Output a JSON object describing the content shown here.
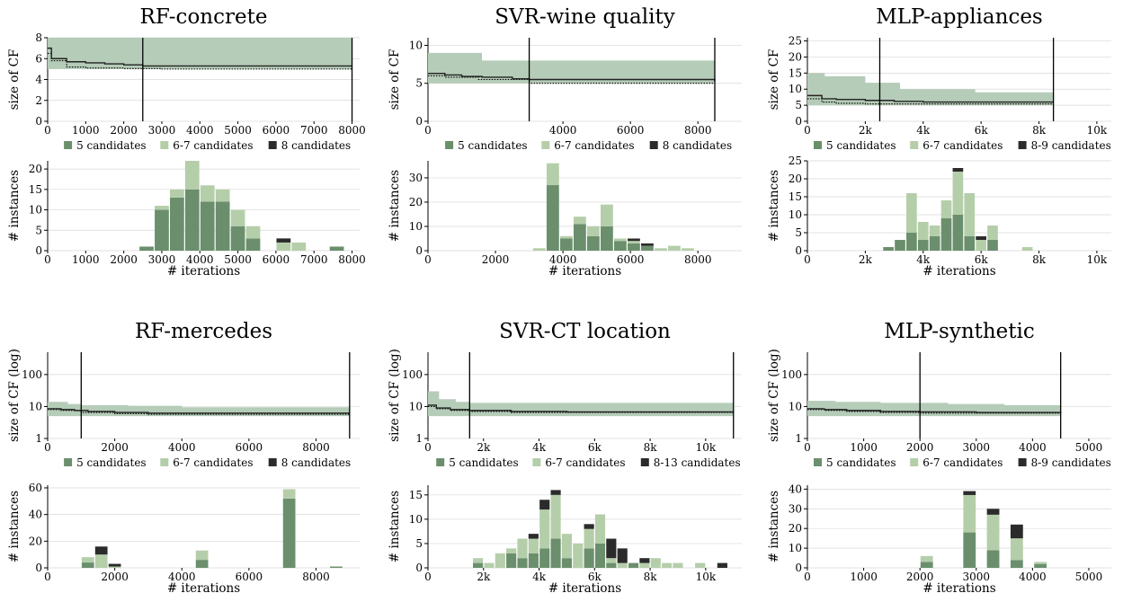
{
  "colors": {
    "c5": "#6b8f6d",
    "c67": "#b5ceaa",
    "c8": "#2b2b2b",
    "band": "#b5ccb8"
  },
  "chart_data": [
    {
      "type": "area",
      "title": "RF-concrete",
      "xlabel": "",
      "ylabel": "size of CF",
      "yscale": "linear",
      "xlim": [
        0,
        8200
      ],
      "ylim": [
        0,
        8
      ],
      "xticks": [
        0,
        1000,
        2000,
        3000,
        4000,
        5000,
        6000,
        7000,
        8000
      ],
      "xticklabels": [
        "0",
        "1000",
        "2000",
        "3000",
        "4000",
        "5000",
        "6000",
        "7000",
        "8000"
      ],
      "yticks": [
        0,
        2,
        4,
        6,
        8
      ],
      "yticklabels": [
        "0",
        "2",
        "4",
        "6",
        "8"
      ],
      "vlines": [
        2500,
        8000
      ],
      "band": {
        "x": [
          0,
          100,
          8000
        ],
        "low": [
          5,
          5,
          5
        ],
        "high": [
          8,
          8,
          8
        ]
      },
      "median": {
        "x": [
          0,
          100,
          500,
          1000,
          1500,
          2000,
          2500,
          8000
        ],
        "y": [
          7,
          6,
          5.7,
          5.6,
          5.5,
          5.4,
          5.3,
          5.3
        ]
      },
      "mean": {
        "x": [
          0,
          100,
          500,
          1000,
          2000,
          3000,
          8000
        ],
        "y": [
          6.5,
          5.8,
          5.2,
          5.1,
          5.05,
          5.0,
          5.0
        ]
      },
      "legend": [
        "5 candidates",
        "6-7 candidates",
        "8 candidates"
      ]
    },
    {
      "type": "bar",
      "title": "",
      "xlabel": "# iterations",
      "ylabel": "# instances",
      "xlim": [
        0,
        8200
      ],
      "ylim": [
        0,
        22
      ],
      "xticks": [
        0,
        1000,
        2000,
        3000,
        4000,
        5000,
        6000,
        7000,
        8000
      ],
      "xticklabels": [
        "0",
        "1000",
        "2000",
        "3000",
        "4000",
        "5000",
        "6000",
        "7000",
        "8000"
      ],
      "yticks": [
        0,
        5,
        10,
        15,
        20
      ],
      "yticklabels": [
        "0",
        "5",
        "10",
        "15",
        "20"
      ],
      "bin_width": 400,
      "bins": [
        2600,
        3000,
        3400,
        3800,
        4200,
        4600,
        5000,
        5400,
        5800,
        6200,
        6600,
        7000,
        7600
      ],
      "series": [
        {
          "name": "5 candidates",
          "values": [
            1,
            10,
            13,
            15,
            12,
            12,
            6,
            3,
            0,
            0,
            0,
            0,
            1
          ]
        },
        {
          "name": "6-7 candidates",
          "values": [
            0,
            1,
            2,
            7,
            4,
            3,
            4,
            3,
            0,
            2,
            2,
            0,
            0
          ]
        },
        {
          "name": "8 candidates",
          "values": [
            0,
            0,
            0,
            0,
            0,
            0,
            0,
            0,
            0,
            1,
            0,
            0,
            0
          ]
        }
      ]
    },
    {
      "type": "area",
      "title": "SVR-wine quality",
      "xlabel": "",
      "ylabel": "size of CF",
      "yscale": "linear",
      "xlim": [
        0,
        9300
      ],
      "ylim": [
        0,
        11
      ],
      "xticks": [
        0,
        4000,
        6000,
        8000
      ],
      "xticklabels": [
        "0",
        "4000",
        "6000",
        "8000"
      ],
      "yticks": [
        0,
        5,
        10
      ],
      "yticklabels": [
        "0",
        "5",
        "10"
      ],
      "vlines": [
        3000,
        8500
      ],
      "band": {
        "x": [
          0,
          1600,
          8500
        ],
        "low": [
          5,
          5,
          5
        ],
        "high": [
          9,
          8,
          8
        ]
      },
      "median": {
        "x": [
          0,
          500,
          1000,
          1600,
          2500,
          3000,
          8500
        ],
        "y": [
          6.3,
          6.1,
          5.9,
          5.8,
          5.6,
          5.5,
          5.3
        ]
      },
      "mean": {
        "x": [
          0,
          500,
          1500,
          3000,
          8500
        ],
        "y": [
          6.0,
          5.8,
          5.5,
          5.0,
          5.0
        ]
      },
      "legend": [
        "5 candidates",
        "6-7 candidates",
        "8 candidates"
      ]
    },
    {
      "type": "bar",
      "title": "",
      "xlabel": "# iterations",
      "ylabel": "# instances",
      "xlim": [
        0,
        9300
      ],
      "ylim": [
        0,
        37
      ],
      "xticks": [
        0,
        2000,
        4000,
        6000,
        8000
      ],
      "xticklabels": [
        "0",
        "2000",
        "4000",
        "6000",
        "8000"
      ],
      "yticks": [
        0,
        10,
        20,
        30
      ],
      "yticklabels": [
        "0",
        "10",
        "20",
        "30"
      ],
      "bin_width": 400,
      "bins": [
        3300,
        3700,
        4100,
        4500,
        4900,
        5300,
        5700,
        6100,
        6500,
        6900,
        7300,
        7700,
        8100
      ],
      "series": [
        {
          "name": "5 candidates",
          "values": [
            0,
            27,
            5,
            11,
            6,
            10,
            4,
            3,
            2,
            0,
            0,
            0,
            0
          ]
        },
        {
          "name": "6-7 candidates",
          "values": [
            1,
            9,
            1,
            3,
            4,
            9,
            1,
            1,
            0,
            1,
            2,
            1,
            0
          ]
        },
        {
          "name": "8 candidates",
          "values": [
            0,
            0,
            0,
            0,
            0,
            0,
            0,
            1,
            1,
            0,
            0,
            0,
            0
          ]
        }
      ]
    },
    {
      "type": "area",
      "title": "MLP-appliances",
      "xlabel": "",
      "ylabel": "size of CF",
      "yscale": "linear",
      "xlim": [
        0,
        10500
      ],
      "ylim": [
        0,
        26
      ],
      "xticks": [
        0,
        2000,
        4000,
        6000,
        8000,
        10000
      ],
      "xticklabels": [
        "0",
        "2k",
        "4k",
        "6k",
        "8k",
        "10k"
      ],
      "yticks": [
        0,
        5,
        10,
        15,
        20,
        25
      ],
      "yticklabels": [
        "0",
        "5",
        "10",
        "15",
        "20",
        "25"
      ],
      "vlines": [
        2500,
        8500
      ],
      "band": {
        "x": [
          0,
          600,
          2000,
          3200,
          5800,
          8500
        ],
        "low": [
          5,
          5,
          5,
          5,
          5,
          5
        ],
        "high": [
          15,
          14,
          12,
          10,
          9,
          9
        ]
      },
      "median": {
        "x": [
          0,
          500,
          1000,
          2000,
          3000,
          4000,
          8500
        ],
        "y": [
          8,
          7,
          6.8,
          6.5,
          6.2,
          6,
          6
        ]
      },
      "mean": {
        "x": [
          0,
          500,
          1000,
          2000,
          8500
        ],
        "y": [
          7,
          6,
          5.6,
          5.4,
          5.4
        ]
      },
      "legend": [
        "5 candidates",
        "6-7 candidates",
        "8-9 candidates"
      ]
    },
    {
      "type": "bar",
      "title": "",
      "xlabel": "# iterations",
      "ylabel": "# instances",
      "xlim": [
        0,
        10500
      ],
      "ylim": [
        0,
        25
      ],
      "xticks": [
        0,
        2000,
        4000,
        6000,
        8000,
        10000
      ],
      "xticklabels": [
        "0",
        "2k",
        "4k",
        "6k",
        "8k",
        "10k"
      ],
      "yticks": [
        0,
        5,
        10,
        15,
        20,
        25
      ],
      "yticklabels": [
        "0",
        "5",
        "10",
        "15",
        "20",
        "25"
      ],
      "bin_width": 400,
      "bins": [
        2800,
        3200,
        3600,
        4000,
        4400,
        4800,
        5200,
        5600,
        6000,
        6400,
        6800,
        7200,
        7600,
        8000
      ],
      "series": [
        {
          "name": "5 candidates",
          "values": [
            1,
            3,
            5,
            3,
            4,
            9,
            10,
            4,
            0,
            3,
            0,
            0,
            0,
            0
          ]
        },
        {
          "name": "6-7 candidates",
          "values": [
            0,
            0,
            11,
            5,
            3,
            5,
            12,
            12,
            3,
            4,
            0,
            0,
            1,
            0
          ]
        },
        {
          "name": "8-9 candidates",
          "values": [
            0,
            0,
            0,
            0,
            0,
            0,
            1,
            0,
            1,
            0,
            0,
            0,
            0,
            0
          ]
        }
      ]
    },
    {
      "type": "area",
      "title": "RF-mercedes",
      "xlabel": "",
      "ylabel": "size of CF (log)",
      "yscale": "log",
      "xlim": [
        0,
        9300
      ],
      "ylim": [
        1,
        500
      ],
      "xticks": [
        0,
        2000,
        4000,
        6000,
        8000
      ],
      "xticklabels": [
        "0",
        "2000",
        "4000",
        "6000",
        "8000"
      ],
      "yticks": [
        1,
        10,
        100
      ],
      "yticklabels": [
        "1",
        "10",
        "100"
      ],
      "vlines": [
        1000,
        9000
      ],
      "band": {
        "x": [
          0,
          600,
          1000,
          2400,
          4000,
          9000
        ],
        "low": [
          5,
          5,
          5,
          5,
          5,
          5
        ],
        "high": [
          14,
          12,
          11,
          10.5,
          9.5,
          9
        ]
      },
      "median": {
        "x": [
          0,
          400,
          800,
          1200,
          2000,
          3000,
          9000
        ],
        "y": [
          8.5,
          8,
          7.5,
          7,
          6.5,
          6.2,
          6
        ]
      },
      "mean": {
        "x": [
          0,
          400,
          1000,
          2000,
          3000,
          9000
        ],
        "y": [
          8,
          7.5,
          6.5,
          6,
          5.7,
          5.5
        ]
      },
      "legend": [
        "5 candidates",
        "6-7 candidates",
        "8 candidates"
      ]
    },
    {
      "type": "bar",
      "title": "",
      "xlabel": "# iterations",
      "ylabel": "# instances",
      "xlim": [
        0,
        9300
      ],
      "ylim": [
        0,
        62
      ],
      "xticks": [
        0,
        2000,
        4000,
        6000,
        8000
      ],
      "xticklabels": [
        "0",
        "2000",
        "4000",
        "6000",
        "8000"
      ],
      "yticks": [
        0,
        20,
        40,
        60
      ],
      "yticklabels": [
        "0",
        "20",
        "40",
        "60"
      ],
      "bin_width": 400,
      "bins": [
        1200,
        1600,
        2000,
        4600,
        7200,
        8600
      ],
      "series": [
        {
          "name": "5 candidates",
          "values": [
            4,
            0,
            0,
            6,
            52,
            1
          ]
        },
        {
          "name": "6-7 candidates",
          "values": [
            4,
            10,
            1,
            7,
            7,
            0
          ]
        },
        {
          "name": "8 candidates",
          "values": [
            0,
            6,
            2,
            0,
            0,
            0
          ]
        }
      ]
    },
    {
      "type": "area",
      "title": "SVR-CT location",
      "xlabel": "",
      "ylabel": "size of CF (log)",
      "yscale": "log",
      "xlim": [
        0,
        11300
      ],
      "ylim": [
        1,
        500
      ],
      "xticks": [
        0,
        2000,
        4000,
        6000,
        8000,
        10000
      ],
      "xticklabels": [
        "0",
        "2k",
        "4k",
        "6k",
        "8k",
        "10k"
      ],
      "yticks": [
        1,
        10,
        100
      ],
      "yticklabels": [
        "1",
        "10",
        "100"
      ],
      "vlines": [
        1500,
        11000
      ],
      "band": {
        "x": [
          0,
          400,
          1000,
          1500,
          11000
        ],
        "low": [
          5,
          5,
          5,
          5,
          5
        ],
        "high": [
          30,
          17,
          14,
          13,
          13
        ]
      },
      "median": {
        "x": [
          0,
          300,
          800,
          1500,
          3000,
          5000,
          11000
        ],
        "y": [
          11,
          9,
          8,
          7.5,
          7,
          6.8,
          6.5
        ]
      },
      "mean": {
        "x": [
          0,
          300,
          800,
          1500,
          3000,
          11000
        ],
        "y": [
          10,
          8.5,
          7.5,
          7,
          6.5,
          6.2
        ]
      },
      "legend": [
        "5 candidates",
        "6-7 candidates",
        "8-13 candidates"
      ]
    },
    {
      "type": "bar",
      "title": "",
      "xlabel": "# iterations",
      "ylabel": "# instances",
      "xlim": [
        0,
        11300
      ],
      "ylim": [
        0,
        17
      ],
      "xticks": [
        0,
        2000,
        4000,
        6000,
        8000,
        10000
      ],
      "xticklabels": [
        "0",
        "2k",
        "4k",
        "6k",
        "8k",
        "10k"
      ],
      "yticks": [
        0,
        5,
        10,
        15
      ],
      "yticklabels": [
        "0",
        "5",
        "10",
        "15"
      ],
      "bin_width": 400,
      "bins": [
        1800,
        2200,
        2600,
        3000,
        3400,
        3800,
        4200,
        4600,
        5000,
        5400,
        5800,
        6200,
        6600,
        7000,
        7400,
        7800,
        8200,
        8600,
        9000,
        9800,
        10600
      ],
      "series": [
        {
          "name": "5 candidates",
          "values": [
            1,
            0,
            0,
            3,
            2,
            3,
            4,
            6,
            2,
            0,
            4,
            5,
            1,
            0,
            1,
            0,
            0,
            0,
            0,
            0,
            0
          ]
        },
        {
          "name": "6-7 candidates",
          "values": [
            1,
            1,
            3,
            1,
            4,
            3,
            8,
            9,
            5,
            5,
            4,
            6,
            1,
            1,
            0,
            1,
            2,
            1,
            1,
            1,
            0
          ]
        },
        {
          "name": "8-13 candidates",
          "values": [
            0,
            0,
            0,
            0,
            0,
            1,
            2,
            1,
            0,
            0,
            1,
            0,
            4,
            3,
            0,
            1,
            0,
            0,
            0,
            0,
            1
          ]
        }
      ]
    },
    {
      "type": "area",
      "title": "MLP-synthetic",
      "xlabel": "",
      "ylabel": "size of CF (log)",
      "yscale": "log",
      "xlim": [
        0,
        5400
      ],
      "ylim": [
        1,
        500
      ],
      "xticks": [
        0,
        1000,
        2000,
        3000,
        4000,
        5000
      ],
      "xticklabels": [
        "0",
        "1000",
        "2000",
        "3000",
        "4000",
        "5000"
      ],
      "yticks": [
        1,
        10,
        100
      ],
      "yticklabels": [
        "1",
        "10",
        "100"
      ],
      "vlines": [
        2000,
        4500
      ],
      "band": {
        "x": [
          0,
          500,
          1300,
          2500,
          3500,
          4500
        ],
        "low": [
          5,
          5,
          5,
          5,
          5,
          5
        ],
        "high": [
          15,
          14,
          13,
          12,
          11,
          11
        ]
      },
      "median": {
        "x": [
          0,
          300,
          700,
          1300,
          2000,
          3000,
          4500
        ],
        "y": [
          8.5,
          8,
          7.5,
          7,
          6.8,
          6.5,
          6.3
        ]
      },
      "mean": {
        "x": [
          0,
          300,
          700,
          1300,
          2000,
          4500
        ],
        "y": [
          8,
          7.5,
          7,
          6.5,
          6.2,
          6
        ]
      },
      "legend": [
        "5 candidates",
        "6-7 candidates",
        "8-9 candidates"
      ]
    },
    {
      "type": "bar",
      "title": "",
      "xlabel": "# iterations",
      "ylabel": "# instances",
      "xlim": [
        0,
        5400
      ],
      "ylim": [
        0,
        42
      ],
      "xticks": [
        0,
        1000,
        2000,
        3000,
        4000,
        5000
      ],
      "xticklabels": [
        "0",
        "1000",
        "2000",
        "3000",
        "4000",
        "5000"
      ],
      "yticks": [
        0,
        10,
        20,
        30,
        40
      ],
      "yticklabels": [
        "0",
        "10",
        "20",
        "30",
        "40"
      ],
      "bin_width": 240,
      "bins": [
        2120,
        2880,
        3300,
        3720,
        4140
      ],
      "series": [
        {
          "name": "5 candidates",
          "values": [
            3,
            18,
            9,
            4,
            2
          ]
        },
        {
          "name": "6-7 candidates",
          "values": [
            3,
            19,
            18,
            11,
            1
          ]
        },
        {
          "name": "8-9 candidates",
          "values": [
            0,
            2,
            3,
            7,
            0
          ]
        }
      ]
    }
  ]
}
